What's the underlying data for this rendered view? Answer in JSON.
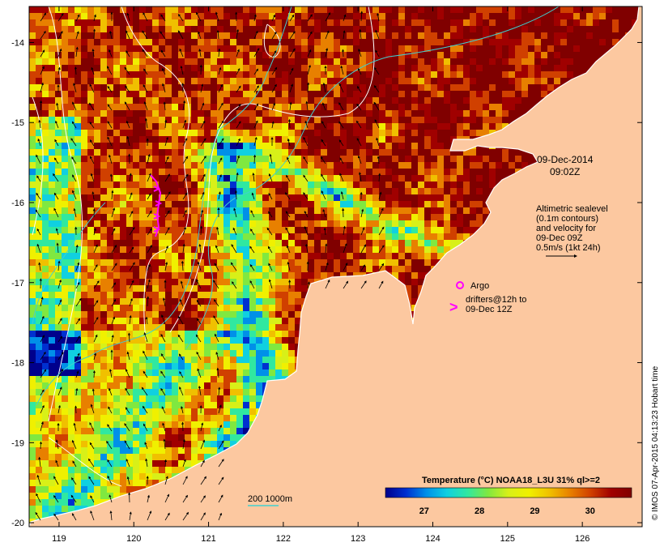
{
  "map": {
    "date_line1": "09-Dec-2014",
    "date_line2": "09:02Z",
    "altimetry_lines": [
      "Altimetric sealevel",
      "(0.1m contours)",
      "and velocity for",
      "09-Dec 09Z",
      "0.5m/s (1kt 24h)"
    ],
    "argo_label": "Argo",
    "drifter_lines": [
      "drifters@12h to",
      "09-Dec 12Z"
    ],
    "drifter_marker": ">",
    "bathymetry_label": "200  1000m",
    "credit": "© IMOS 07-Apr-2015 04:13:23 Hobart time",
    "latitudes": [
      "-14",
      "-15",
      "-16",
      "-17",
      "-18",
      "-19",
      "-20"
    ],
    "longitudes": [
      "119",
      "120",
      "121",
      "122",
      "123",
      "124",
      "125",
      "126"
    ],
    "lat_values": [
      -14,
      -15,
      -16,
      -17,
      -18,
      -19,
      -20
    ],
    "lon_values": [
      119,
      120,
      121,
      122,
      123,
      124,
      125,
      126
    ],
    "lon_range": [
      118.6,
      126.8
    ],
    "lat_range": [
      -20.05,
      -13.55
    ],
    "colorbar": {
      "title": "Temperature (°C) NOAA18_L3U 31% ql>=2",
      "ticks": [
        "27",
        "28",
        "29",
        "30"
      ],
      "tick_values": [
        27,
        28,
        29,
        30
      ],
      "range": [
        26.3,
        30.75
      ],
      "colors": [
        "#00008c",
        "#0030d0",
        "#0090e8",
        "#10d0e0",
        "#30e8a0",
        "#80e840",
        "#d8f018",
        "#f0f000",
        "#f0c000",
        "#e88000",
        "#d04000",
        "#a00000",
        "#800000"
      ]
    },
    "colors": {
      "land": "#fcc8a0",
      "coast": "#ffffff",
      "contour": "#ffffff",
      "isobath": "#40d0d0",
      "drifter": "#ff00ff",
      "argo": "#ff00ff"
    }
  }
}
